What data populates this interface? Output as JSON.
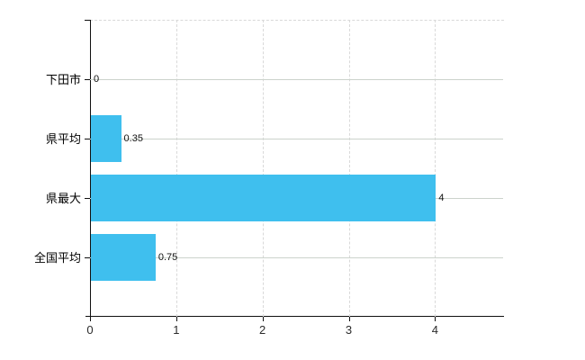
{
  "chart_data": {
    "type": "bar",
    "orientation": "horizontal",
    "title": "",
    "categories": [
      "下田市",
      "県平均",
      "県最大",
      "全国平均"
    ],
    "values": [
      0,
      0.35,
      4,
      0.75
    ],
    "value_labels": [
      "0",
      "0.35",
      "4",
      "0.75"
    ],
    "x_tick_labels": [
      "0",
      "1",
      "2",
      "3",
      "4"
    ],
    "x_tick_values": [
      0,
      1,
      2,
      3,
      4
    ],
    "xlim": [
      0,
      4.8
    ],
    "grid": true,
    "legend_position": "none"
  },
  "colors": {
    "bar": "#3FBFEE",
    "axis": "#101010",
    "grid_vertical": "#d9d9d9",
    "grid_horizontal": "#ccd3cc",
    "background": "#ffffff",
    "category_text": "#000000",
    "value_text": "#111111",
    "tick_text": "#2b2b2b"
  }
}
